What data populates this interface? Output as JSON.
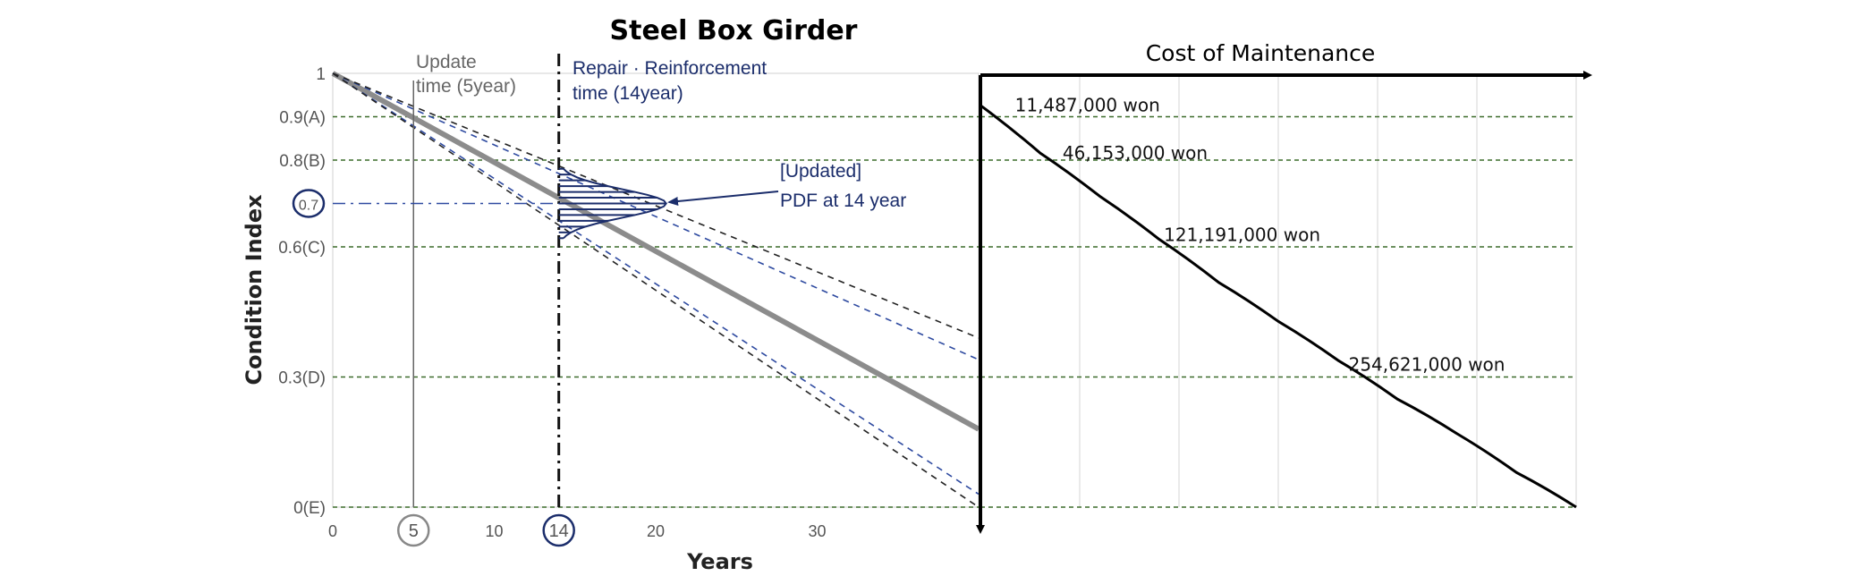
{
  "chart_data": [
    {
      "type": "line",
      "title": "Steel Box Girder",
      "xlabel": "Years",
      "ylabel": "Condition Index",
      "xlim": [
        0,
        40
      ],
      "ylim": [
        0,
        1
      ],
      "x_ticks": [
        0,
        5,
        10,
        14,
        20,
        30
      ],
      "x_tick_labels": [
        "0",
        "5",
        "10",
        "14",
        "20",
        "30"
      ],
      "circled_x_ticks": [
        5,
        14
      ],
      "y_ticks": [
        {
          "value": 1,
          "label": "1"
        },
        {
          "value": 0.9,
          "label": "0.9(A)"
        },
        {
          "value": 0.8,
          "label": "0.8(B)"
        },
        {
          "value": 0.7,
          "label": "0.7"
        },
        {
          "value": 0.6,
          "label": "0.6(C)"
        },
        {
          "value": 0.3,
          "label": "0.3(D)"
        },
        {
          "value": 0,
          "label": "0(E)"
        }
      ],
      "circled_y_ticks": [
        0.7
      ],
      "grade_lines": [
        0.9,
        0.8,
        0.6,
        0.3,
        0
      ],
      "series": [
        {
          "x": [
            0,
            40
          ],
          "y": [
            1,
            0.18
          ],
          "color": "#8c8c8c",
          "style": "solid"
        },
        {
          "x": [
            0,
            40
          ],
          "y": [
            1,
            0.34
          ],
          "color": "#2e4aa0",
          "style": "dashed"
        },
        {
          "x": [
            0,
            40
          ],
          "y": [
            1,
            0.03
          ],
          "color": "#2e4aa0",
          "style": "dashed"
        },
        {
          "x": [
            0,
            40
          ],
          "y": [
            1,
            0.39
          ],
          "color": "#222222",
          "style": "dashed"
        },
        {
          "x": [
            0,
            40
          ],
          "y": [
            1,
            0.0
          ],
          "color": "#222222",
          "style": "dashed"
        }
      ],
      "vertical_markers": [
        {
          "x": 5,
          "label_lines": [
            "Update",
            "time (5year)"
          ],
          "color": "#666666",
          "style": "solid"
        },
        {
          "x": 14,
          "label_lines": [
            "Repair · Reinforcement",
            "time (14year)"
          ],
          "color": "#111111",
          "style": "dashdot"
        }
      ],
      "horizontal_marker": {
        "y": 0.7,
        "color": "#2e4aa0",
        "style": "dashdot"
      },
      "pdf": {
        "x": 14,
        "mean": 0.7,
        "spread": 0.08,
        "annotation_lines": [
          "[Updated]",
          "PDF at 14 year"
        ],
        "color": "#1b2d6b"
      }
    },
    {
      "type": "line",
      "title": "Cost of Maintenance",
      "xlim": [
        0,
        1
      ],
      "ylim": [
        0,
        1
      ],
      "grid": true,
      "curve": {
        "x": [
          0,
          0.1,
          0.2,
          0.3,
          0.4,
          0.5,
          0.6,
          0.7,
          0.8,
          0.9,
          1.0
        ],
        "y": [
          0.93,
          0.82,
          0.72,
          0.62,
          0.52,
          0.43,
          0.34,
          0.25,
          0.17,
          0.08,
          0.0
        ],
        "color": "#000000"
      },
      "annotations": [
        {
          "text": "11,487,000 won",
          "x": 0.04,
          "y": 0.92
        },
        {
          "text": "46,153,000 won",
          "x": 0.12,
          "y": 0.81
        },
        {
          "text": "121,191,000 won",
          "x": 0.29,
          "y": 0.62
        },
        {
          "text": "254,621,000 won",
          "x": 0.6,
          "y": 0.32
        }
      ]
    }
  ]
}
